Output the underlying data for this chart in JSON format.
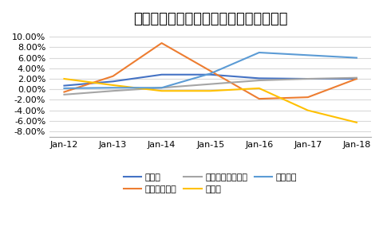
{
  "title": "国内銀行の貸出先別貸出金の伸び率推移",
  "x_labels": [
    "Jan-12",
    "Jan-13",
    "Jan-14",
    "Jan-15",
    "Jan-16",
    "Jan-17",
    "Jan-18"
  ],
  "series": [
    {
      "name": "総貸出",
      "color": "#4472C4",
      "values": [
        0.007,
        0.015,
        0.028,
        0.028,
        0.021,
        0.02,
        0.02
      ]
    },
    {
      "name": "金融・保険業",
      "color": "#ED7D31",
      "values": [
        -0.005,
        0.025,
        0.088,
        0.035,
        -0.018,
        -0.015,
        0.02
      ]
    },
    {
      "name": "個人による貸家業",
      "color": "#A5A5A5",
      "values": [
        -0.01,
        -0.003,
        0.003,
        0.01,
        0.017,
        0.02,
        0.022
      ]
    },
    {
      "name": "製造業",
      "color": "#FFC000",
      "values": [
        0.02,
        0.008,
        -0.003,
        -0.003,
        0.002,
        -0.04,
        -0.063
      ]
    },
    {
      "name": "不動産業",
      "color": "#5B9BD5",
      "values": [
        0.002,
        0.003,
        0.003,
        0.03,
        0.07,
        0.065,
        0.06
      ]
    }
  ],
  "ylim": [
    -0.09,
    0.105
  ],
  "yticks": [
    -0.08,
    -0.06,
    -0.04,
    -0.02,
    0.0,
    0.02,
    0.04,
    0.06,
    0.08,
    0.1
  ],
  "background_color": "#FFFFFF",
  "grid_color": "#D9D9D9",
  "title_fontsize": 13,
  "legend_fontsize": 8,
  "tick_fontsize": 8
}
